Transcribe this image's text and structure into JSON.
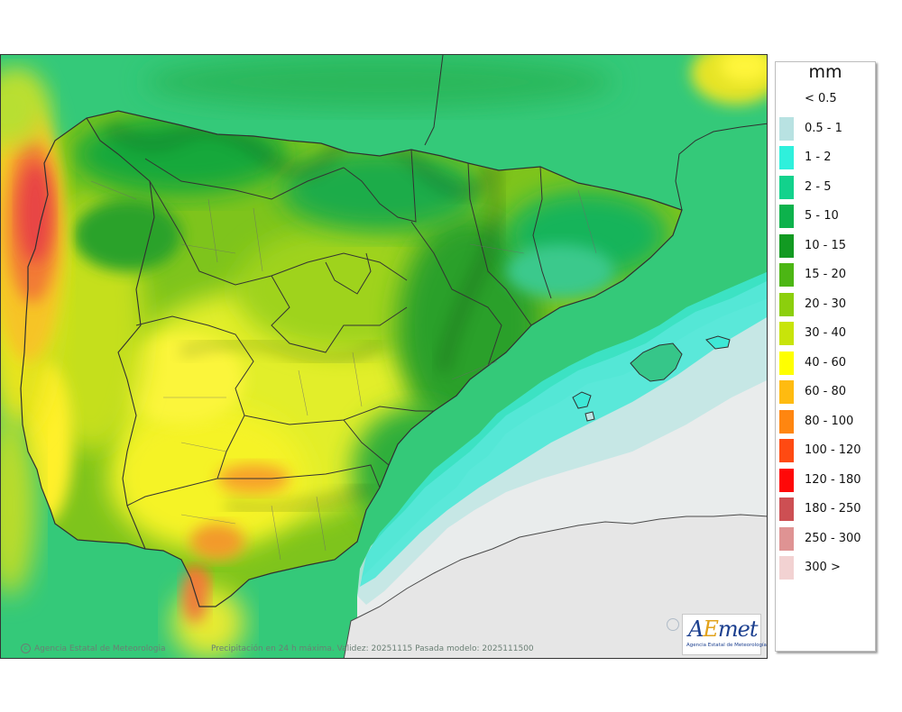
{
  "map": {
    "credit_text": "Agencia Estatal de Meteorologia",
    "caption": "Precipitación en 24 h máxima. Validez: 20251115 Pasada modelo: 2025111500",
    "logo": {
      "word_a": "A",
      "word_e": "E",
      "word_rest": "met",
      "subtitle": "Agencia Estatal de Meteorología"
    },
    "colors": {
      "sea_clear": "#ebebeb",
      "land_clear": "#e6e6e6",
      "border": "#303030"
    }
  },
  "legend": {
    "unit": "mm",
    "items": [
      {
        "label": "< 0.5",
        "color": "#ffffff"
      },
      {
        "label": "0.5 - 1",
        "color": "#b8e2e2"
      },
      {
        "label": "1 - 2",
        "color": "#2ff0dc"
      },
      {
        "label": "2 - 5",
        "color": "#12d28c"
      },
      {
        "label": "5 - 10",
        "color": "#0db24c"
      },
      {
        "label": "10 - 15",
        "color": "#129a22"
      },
      {
        "label": "15 - 20",
        "color": "#4cb614"
      },
      {
        "label": "20 - 30",
        "color": "#8ccf0d"
      },
      {
        "label": "30 - 40",
        "color": "#c8e40a"
      },
      {
        "label": "40 - 60",
        "color": "#ffff00"
      },
      {
        "label": "60 - 80",
        "color": "#ffbb10"
      },
      {
        "label": "80 - 100",
        "color": "#ff8610"
      },
      {
        "label": "100 - 120",
        "color": "#ff4a12"
      },
      {
        "label": "120 - 180",
        "color": "#ff0808"
      },
      {
        "label": "180 - 250",
        "color": "#cd4f53"
      },
      {
        "label": "250 - 300",
        "color": "#df9393"
      },
      {
        "label": "300 >",
        "color": "#f2d2d2"
      }
    ]
  }
}
